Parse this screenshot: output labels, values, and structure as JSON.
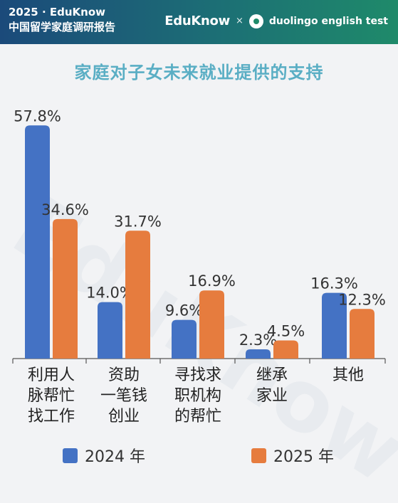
{
  "header": {
    "line1": "2025 · EduKnow",
    "line2": "中国留学家庭调研报告",
    "brand": "EduKnow",
    "separator": "×",
    "partner": "duolingo english test"
  },
  "watermark": "EduKnow",
  "chart_data": {
    "type": "bar",
    "title": "家庭对子女未来就业提供的支持",
    "categories": [
      "利用人脉帮忙找工作",
      "资助一笔钱创业",
      "寻找求职机构的帮忙",
      "继承家业",
      "其他"
    ],
    "category_lines": [
      [
        "利用人",
        "脉帮忙",
        "找工作"
      ],
      [
        "资助",
        "一笔钱",
        "创业"
      ],
      [
        "寻找求",
        "职机构",
        "的帮忙"
      ],
      [
        "继承",
        "家业"
      ],
      [
        "其他"
      ]
    ],
    "series": [
      {
        "name": "2024 年",
        "values": [
          57.8,
          14.0,
          9.6,
          2.3,
          16.3
        ],
        "labels": [
          "57.8%",
          "14.0%",
          "9.6%",
          "2.3%",
          "16.3%"
        ],
        "color": "#4472c4"
      },
      {
        "name": "2025 年",
        "values": [
          34.6,
          31.7,
          16.9,
          4.5,
          12.3
        ],
        "labels": [
          "34.6%",
          "31.7%",
          "16.9%",
          "4.5%",
          "12.3%"
        ],
        "color": "#e67c3e"
      }
    ],
    "ylim": [
      0,
      60
    ],
    "grid": false,
    "legend_position": "bottom"
  },
  "colors": {
    "title": "#5aaec4",
    "axis": "#555555"
  }
}
